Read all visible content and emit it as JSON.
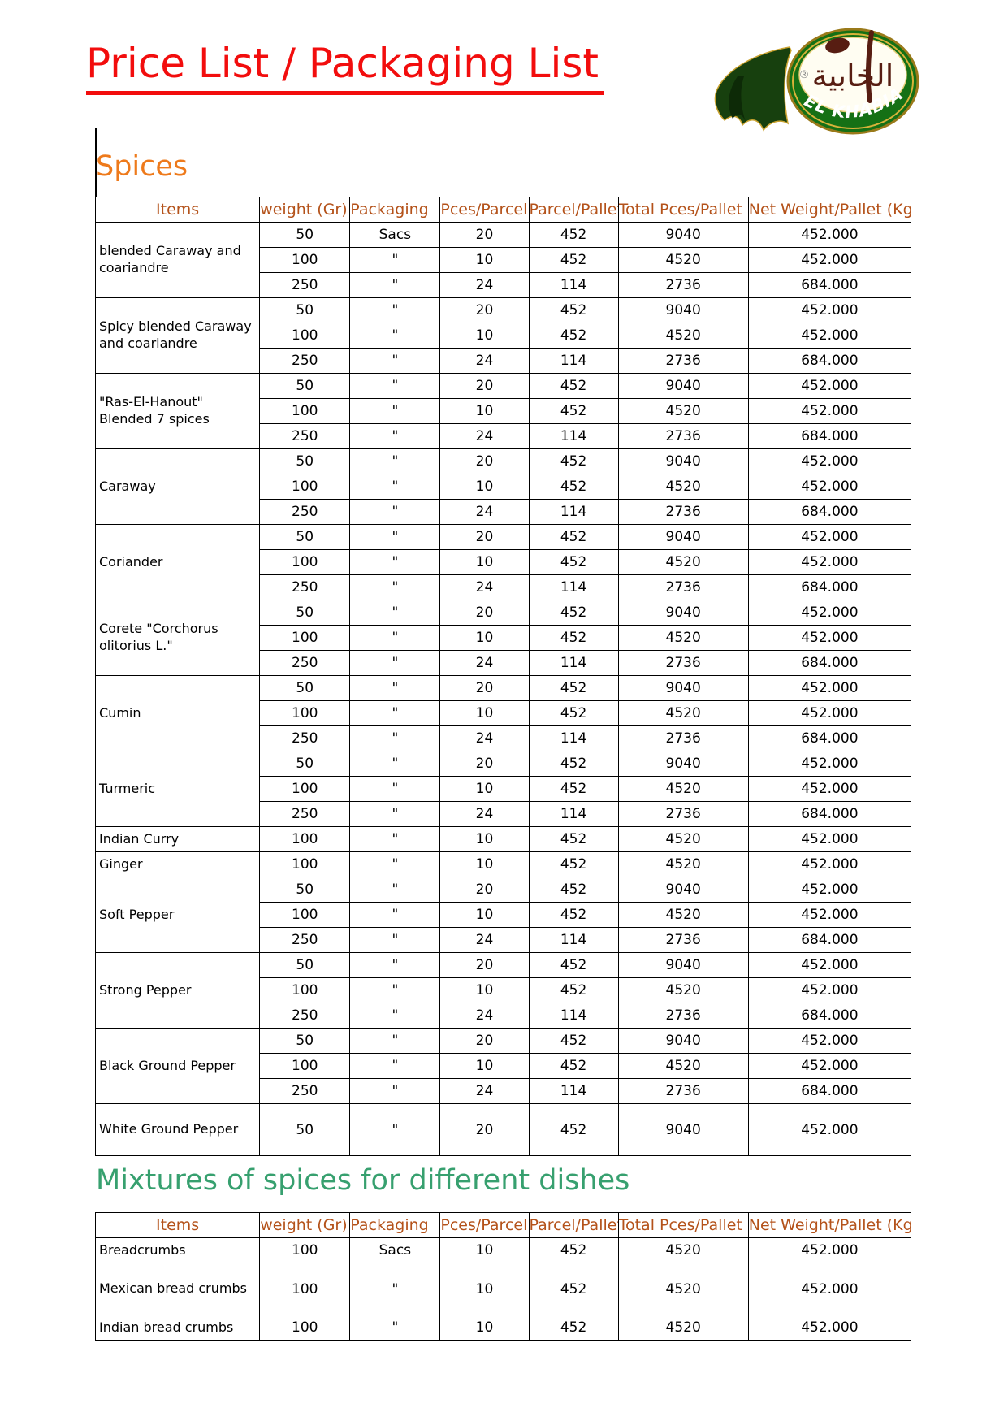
{
  "title": "Price List / Packaging List",
  "logo": {
    "brand": "EL KHABIA",
    "brand_arabic": "الخابية",
    "registered": "®"
  },
  "colors": {
    "title_red": "#f20d0d",
    "spices_heading_orange": "#ee7a1b",
    "mixtures_heading_green": "#37a06f",
    "table_header_brown": "#b4521a",
    "logo_green": "#157015",
    "logo_gold": "#d9b23a",
    "logo_maroon": "#571d12"
  },
  "columns": [
    "Items",
    "weight (Gr)",
    "Packaging",
    "Pces/Parcel",
    "Parcel/Pallet",
    "Total Pces/Pallet",
    "Net Weight/Pallet (Kg)"
  ],
  "spices": {
    "heading": "Spices",
    "groups": [
      {
        "item": "blended Caraway and coariandre",
        "rows": [
          {
            "cells": [
              "50",
              "Sacs",
              "20",
              "452",
              "9040",
              "452.000"
            ]
          },
          {
            "cells": [
              "100",
              "\"",
              "10",
              "452",
              "4520",
              "452.000"
            ]
          },
          {
            "cells": [
              "250",
              "\"",
              "24",
              "114",
              "2736",
              "684.000"
            ]
          }
        ]
      },
      {
        "item": "Spicy blended Caraway and coariandre",
        "rows": [
          {
            "cells": [
              "50",
              "\"",
              "20",
              "452",
              "9040",
              "452.000"
            ]
          },
          {
            "cells": [
              "100",
              "\"",
              "10",
              "452",
              "4520",
              "452.000"
            ]
          },
          {
            "cells": [
              "250",
              "\"",
              "24",
              "114",
              "2736",
              "684.000"
            ]
          }
        ]
      },
      {
        "item": "\"Ras-El-Hanout\" Blended 7 spices",
        "rows": [
          {
            "cells": [
              "50",
              "\"",
              "20",
              "452",
              "9040",
              "452.000"
            ]
          },
          {
            "cells": [
              "100",
              "\"",
              "10",
              "452",
              "4520",
              "452.000"
            ]
          },
          {
            "cells": [
              "250",
              "\"",
              "24",
              "114",
              "2736",
              "684.000"
            ]
          }
        ]
      },
      {
        "item": "Caraway",
        "rows": [
          {
            "cells": [
              "50",
              "\"",
              "20",
              "452",
              "9040",
              "452.000"
            ]
          },
          {
            "cells": [
              "100",
              "\"",
              "10",
              "452",
              "4520",
              "452.000"
            ]
          },
          {
            "cells": [
              "250",
              "\"",
              "24",
              "114",
              "2736",
              "684.000"
            ]
          }
        ]
      },
      {
        "item": "Coriander",
        "rows": [
          {
            "cells": [
              "50",
              "\"",
              "20",
              "452",
              "9040",
              "452.000"
            ]
          },
          {
            "cells": [
              "100",
              "\"",
              "10",
              "452",
              "4520",
              "452.000"
            ]
          },
          {
            "cells": [
              "250",
              "\"",
              "24",
              "114",
              "2736",
              "684.000"
            ]
          }
        ]
      },
      {
        "item": "Corete \"Corchorus olitorius L.\"",
        "rows": [
          {
            "cells": [
              "50",
              "\"",
              "20",
              "452",
              "9040",
              "452.000"
            ]
          },
          {
            "cells": [
              "100",
              "\"",
              "10",
              "452",
              "4520",
              "452.000"
            ]
          },
          {
            "cells": [
              "250",
              "\"",
              "24",
              "114",
              "2736",
              "684.000"
            ]
          }
        ]
      },
      {
        "item": "Cumin",
        "rows": [
          {
            "cells": [
              "50",
              "\"",
              "20",
              "452",
              "9040",
              "452.000"
            ]
          },
          {
            "cells": [
              "100",
              "\"",
              "10",
              "452",
              "4520",
              "452.000"
            ]
          },
          {
            "cells": [
              "250",
              "\"",
              "24",
              "114",
              "2736",
              "684.000"
            ]
          }
        ]
      },
      {
        "item": "Turmeric",
        "rows": [
          {
            "cells": [
              "50",
              "\"",
              "20",
              "452",
              "9040",
              "452.000"
            ]
          },
          {
            "cells": [
              "100",
              "\"",
              "10",
              "452",
              "4520",
              "452.000"
            ]
          },
          {
            "cells": [
              "250",
              "\"",
              "24",
              "114",
              "2736",
              "684.000"
            ]
          }
        ]
      },
      {
        "item": "Indian Curry",
        "rows": [
          {
            "cells": [
              "100",
              "\"",
              "10",
              "452",
              "4520",
              "452.000"
            ]
          }
        ]
      },
      {
        "item": "Ginger",
        "rows": [
          {
            "cells": [
              "100",
              "\"",
              "10",
              "452",
              "4520",
              "452.000"
            ]
          }
        ]
      },
      {
        "item": "Soft Pepper",
        "rows": [
          {
            "cells": [
              "50",
              "\"",
              "20",
              "452",
              "9040",
              "452.000"
            ]
          },
          {
            "cells": [
              "100",
              "\"",
              "10",
              "452",
              "4520",
              "452.000"
            ]
          },
          {
            "cells": [
              "250",
              "\"",
              "24",
              "114",
              "2736",
              "684.000"
            ]
          }
        ]
      },
      {
        "item": "Strong Pepper",
        "rows": [
          {
            "cells": [
              "50",
              "\"",
              "20",
              "452",
              "9040",
              "452.000"
            ]
          },
          {
            "cells": [
              "100",
              "\"",
              "10",
              "452",
              "4520",
              "452.000"
            ]
          },
          {
            "cells": [
              "250",
              "\"",
              "24",
              "114",
              "2736",
              "684.000"
            ]
          }
        ]
      },
      {
        "item": "Black Ground Pepper",
        "rows": [
          {
            "cells": [
              "50",
              "\"",
              "20",
              "452",
              "9040",
              "452.000"
            ]
          },
          {
            "cells": [
              "100",
              "\"",
              "10",
              "452",
              "4520",
              "452.000"
            ]
          },
          {
            "cells": [
              "250",
              "\"",
              "24",
              "114",
              "2736",
              "684.000"
            ]
          }
        ]
      },
      {
        "item": "White Ground Pepper",
        "rows": [
          {
            "cells": [
              "50",
              "\"",
              "20",
              "452",
              "9040",
              "452.000"
            ],
            "tall": true
          }
        ]
      }
    ]
  },
  "mixtures": {
    "heading": "Mixtures of spices for different dishes",
    "groups": [
      {
        "item": "Breadcrumbs",
        "rows": [
          {
            "cells": [
              "100",
              "Sacs",
              "10",
              "452",
              "4520",
              "452.000"
            ]
          }
        ]
      },
      {
        "item": "Mexican bread crumbs",
        "rows": [
          {
            "cells": [
              "100",
              "\"",
              "10",
              "452",
              "4520",
              "452.000"
            ],
            "tall": true
          }
        ]
      },
      {
        "item": "Indian bread crumbs",
        "rows": [
          {
            "cells": [
              "100",
              "\"",
              "10",
              "452",
              "4520",
              "452.000"
            ]
          }
        ]
      }
    ]
  }
}
